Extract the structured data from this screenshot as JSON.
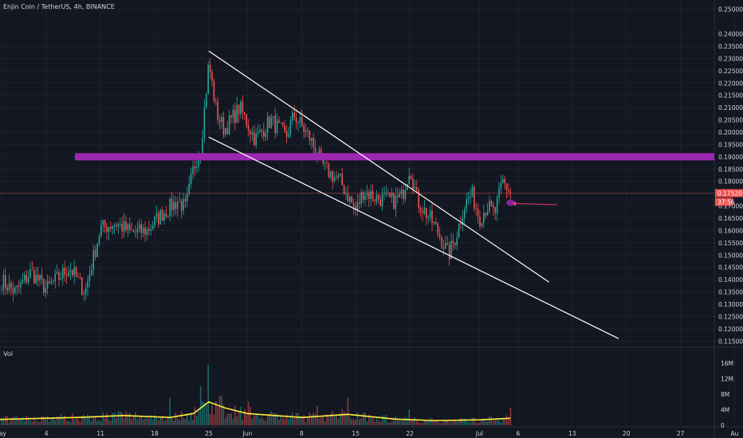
{
  "chart_data": [
    {
      "type": "candlestick",
      "title": "Enjin Coin / TetherUS, 4h, BINANCE",
      "ylim": [
        0.1125,
        0.2525
      ],
      "y_ticks": [
        "0.25000",
        "0.24000",
        "0.23500",
        "0.23000",
        "0.22500",
        "0.22000",
        "0.21500",
        "0.21000",
        "0.20500",
        "0.20000",
        "0.19500",
        "0.19000",
        "0.18500",
        "0.18000",
        "0.17500",
        "0.17000",
        "0.16500",
        "0.16000",
        "0.15500",
        "0.15000",
        "0.14500",
        "0.14000",
        "0.13500",
        "0.13000",
        "0.12500",
        "0.12000",
        "0.11500"
      ],
      "x_ticks": [
        "May",
        "4",
        "11",
        "18",
        "25",
        "Jun",
        "8",
        "15",
        "22",
        "Jul",
        "6",
        "13",
        "20",
        "27",
        "Au"
      ],
      "last_price": "0.17520",
      "countdown": "37:56",
      "resistance_level": 0.19,
      "channel_upper": [
        {
          "date": "May 27",
          "price": 0.233
        },
        {
          "date": "Jul 10",
          "price": 0.139
        }
      ],
      "channel_lower": [
        {
          "date": "May 27",
          "price": 0.198
        },
        {
          "date": "Jul 19",
          "price": 0.116
        }
      ],
      "price_path": [
        {
          "date": "Apr 30",
          "price": 0.14
        },
        {
          "date": "May 2",
          "price": 0.135
        },
        {
          "date": "May 4",
          "price": 0.143
        },
        {
          "date": "May 6",
          "price": 0.136
        },
        {
          "date": "May 9",
          "price": 0.145
        },
        {
          "date": "May 11",
          "price": 0.135
        },
        {
          "date": "May 13",
          "price": 0.161
        },
        {
          "date": "May 15",
          "price": 0.163
        },
        {
          "date": "May 17",
          "price": 0.159
        },
        {
          "date": "May 19",
          "price": 0.16
        },
        {
          "date": "May 21",
          "price": 0.167
        },
        {
          "date": "May 23",
          "price": 0.172
        },
        {
          "date": "May 24",
          "price": 0.169
        },
        {
          "date": "May 25",
          "price": 0.185
        },
        {
          "date": "May 26",
          "price": 0.195
        },
        {
          "date": "May 27",
          "price": 0.228
        },
        {
          "date": "May 28",
          "price": 0.208
        },
        {
          "date": "May 29",
          "price": 0.201
        },
        {
          "date": "May 31",
          "price": 0.21
        },
        {
          "date": "Jun 2",
          "price": 0.197
        },
        {
          "date": "Jun 4",
          "price": 0.205
        },
        {
          "date": "Jun 6",
          "price": 0.198
        },
        {
          "date": "Jun 7",
          "price": 0.207
        },
        {
          "date": "Jun 9",
          "price": 0.198
        },
        {
          "date": "Jun 11",
          "price": 0.185
        },
        {
          "date": "Jun 13",
          "price": 0.18
        },
        {
          "date": "Jun 15",
          "price": 0.168
        },
        {
          "date": "Jun 16",
          "price": 0.176
        },
        {
          "date": "Jun 18",
          "price": 0.173
        },
        {
          "date": "Jun 20",
          "price": 0.172
        },
        {
          "date": "Jun 21",
          "price": 0.174
        },
        {
          "date": "Jun 22",
          "price": 0.186
        },
        {
          "date": "Jun 23",
          "price": 0.172
        },
        {
          "date": "Jun 25",
          "price": 0.163
        },
        {
          "date": "Jun 26",
          "price": 0.157
        },
        {
          "date": "Jun 27",
          "price": 0.15
        },
        {
          "date": "Jun 28",
          "price": 0.158
        },
        {
          "date": "Jun 29",
          "price": 0.17
        },
        {
          "date": "Jun 30",
          "price": 0.175
        },
        {
          "date": "Jul 1",
          "price": 0.165
        },
        {
          "date": "Jul 2",
          "price": 0.17
        },
        {
          "date": "Jul 3",
          "price": 0.167
        },
        {
          "date": "Jul 4",
          "price": 0.18
        },
        {
          "date": "Jul 5",
          "price": 0.1752
        }
      ],
      "arrow": {
        "from": {
          "date": "Jul 11",
          "price": 0.1705
        },
        "to": {
          "date": "Jul 5",
          "price": 0.171
        }
      }
    },
    {
      "type": "bar",
      "title": "Vol",
      "ylim": [
        0,
        18
      ],
      "y_ticks": [
        "16M",
        "12M",
        "8M",
        "4M",
        "0"
      ],
      "volume_profile": [
        {
          "date": "Apr 30",
          "vol": 1.5
        },
        {
          "date": "May 10",
          "vol": 2.0
        },
        {
          "date": "May 16",
          "vol": 2.5
        },
        {
          "date": "May 22",
          "vol": 2.0
        },
        {
          "date": "May 25",
          "vol": 3.0
        },
        {
          "date": "May 27",
          "vol": 6.0
        },
        {
          "date": "May 29",
          "vol": 4.5
        },
        {
          "date": "Jun 1",
          "vol": 3.0
        },
        {
          "date": "Jun 8",
          "vol": 2.0
        },
        {
          "date": "Jun 14",
          "vol": 2.8
        },
        {
          "date": "Jun 20",
          "vol": 1.6
        },
        {
          "date": "Jun 25",
          "vol": 1.2
        },
        {
          "date": "Jul 1",
          "vol": 1.4
        },
        {
          "date": "Jul 5",
          "vol": 1.8
        }
      ],
      "volume_spikes": [
        {
          "date": "May 27",
          "vol": 15.5
        },
        {
          "date": "May 26",
          "vol": 10
        },
        {
          "date": "May 22",
          "vol": 7
        },
        {
          "date": "Jun 1",
          "vol": 6
        },
        {
          "date": "Jun 10",
          "vol": 5
        },
        {
          "date": "Jun 14",
          "vol": 7
        },
        {
          "date": "Jun 22",
          "vol": 4
        },
        {
          "date": "Jul 5",
          "vol": 4.5
        }
      ]
    }
  ],
  "colors": {
    "background": "#131722",
    "text": "#d1d4dc",
    "grid": "#1e222d",
    "up": "#26a69a",
    "down": "#ef5350",
    "resistance": "#9c27b0",
    "channel": "#ffffff",
    "volume_line": "#ffeb3b",
    "arrow": "#f23678"
  }
}
